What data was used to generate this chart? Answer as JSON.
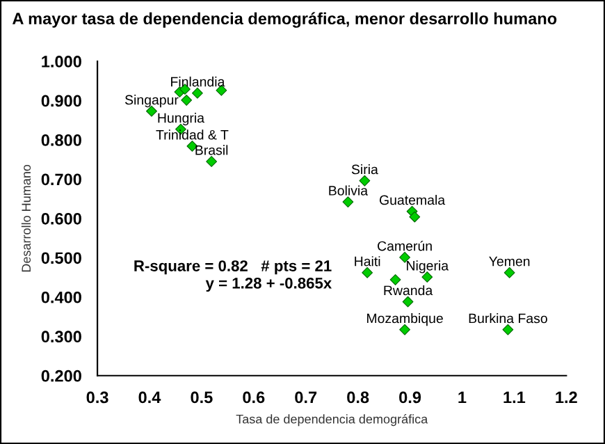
{
  "chart_data": {
    "type": "scatter",
    "title": "A mayor tasa de dependencia demográfica, menor desarrollo humano",
    "xlabel": "Tasa de dependencia demográfica",
    "ylabel": "Desarrollo Humano",
    "x": [
      0.458,
      0.468,
      0.492,
      0.538,
      0.471,
      0.404,
      0.46,
      0.482,
      0.519,
      0.813,
      0.781,
      0.904,
      0.909,
      0.89,
      0.818,
      0.872,
      0.933,
      1.091,
      0.896,
      0.89,
      1.088
    ],
    "series": [
      {
        "color": "#00cc00",
        "values": [
          0.922,
          0.929,
          0.919,
          0.926,
          0.901,
          0.873,
          0.827,
          0.784,
          0.745,
          0.696,
          0.642,
          0.618,
          0.604,
          0.501,
          0.462,
          0.444,
          0.451,
          0.462,
          0.388,
          0.317,
          0.317
        ]
      }
    ],
    "marker": "diamond",
    "grid": false,
    "legend": false,
    "xlim": [
      0.3,
      1.2
    ],
    "xticks": [
      0.3,
      0.4,
      0.5,
      0.6,
      0.7,
      0.8,
      0.9,
      {
        "value": 1.0,
        "label": "1"
      },
      1.1,
      1.2
    ],
    "ylim": [
      0.2,
      1.0
    ],
    "yticks": [
      {
        "value": 0.2,
        "label": "0.200"
      },
      {
        "value": 0.3,
        "label": "0.300"
      },
      {
        "value": 0.4,
        "label": "0.400"
      },
      {
        "value": 0.5,
        "label": "0.500"
      },
      {
        "value": 0.6,
        "label": "0.600"
      },
      {
        "value": 0.7,
        "label": "0.700"
      },
      {
        "value": 0.8,
        "label": "0.800"
      },
      {
        "value": 0.9,
        "label": "0.900"
      },
      {
        "value": 1.0,
        "label": "1.000"
      }
    ],
    "annotations": [
      {
        "text": "Finlandia",
        "x": 0.492,
        "y": 0.919
      },
      {
        "text": "Singapur",
        "x": 0.404,
        "y": 0.873
      },
      {
        "text": "Hungria",
        "x": 0.46,
        "y": 0.827
      },
      {
        "text": "Trinidad & T",
        "x": 0.482,
        "y": 0.784
      },
      {
        "text": "Brasil",
        "x": 0.519,
        "y": 0.745
      },
      {
        "text": "Siria",
        "x": 0.813,
        "y": 0.696
      },
      {
        "text": "Bolivia",
        "x": 0.781,
        "y": 0.642
      },
      {
        "text": "Guatemala",
        "x": 0.904,
        "y": 0.618
      },
      {
        "text": "Camerún",
        "x": 0.89,
        "y": 0.501
      },
      {
        "text": "Haiti",
        "x": 0.818,
        "y": 0.462
      },
      {
        "text": "Nigeria",
        "x": 0.933,
        "y": 0.451
      },
      {
        "text": "Yemen",
        "x": 1.091,
        "y": 0.462
      },
      {
        "text": "Rwanda",
        "x": 0.896,
        "y": 0.388
      },
      {
        "text": "Mozambique",
        "x": 0.89,
        "y": 0.317
      },
      {
        "text": "Burkina Faso",
        "x": 1.088,
        "y": 0.317
      },
      "R-square = 0.82   # pts = 21",
      "y = 1.28 + -0.865x"
    ]
  }
}
